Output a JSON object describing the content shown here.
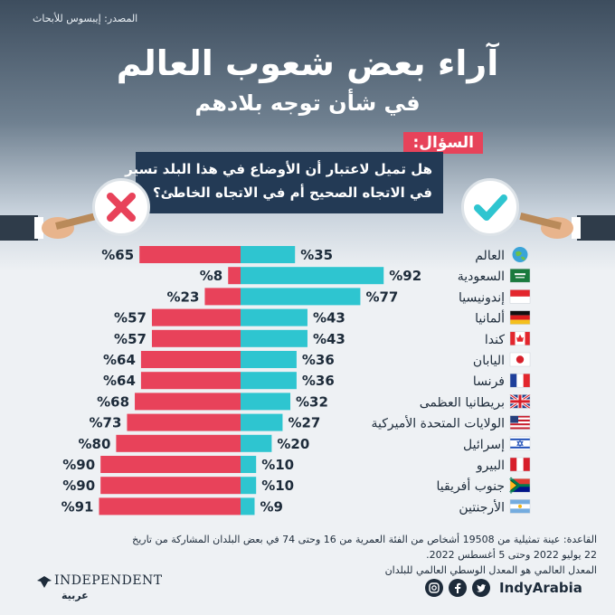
{
  "source": "المصدر: إيبسوس للأبحاث",
  "title": "آراء بعض شعوب العالم",
  "subtitle": "في شأن توجه بلادهم",
  "question_label": "السؤال:",
  "question_line1": "هل تميل لاعتبار أن الأوضاع في هذا البلد تسير",
  "question_line2": "في الاتجاه الصحيح أم في الاتجاه الخاطئ؟",
  "colors": {
    "yes": "#2ec5d0",
    "no": "#e8425a",
    "navy": "#233a55"
  },
  "chart_data": {
    "type": "bar",
    "orientation": "diverging-horizontal",
    "categories": [
      "العالم",
      "السعودية",
      "إندونيسيا",
      "ألمانيا",
      "كندا",
      "اليابان",
      "فرنسا",
      "بريطانيا العظمى",
      "الولايات المتحدة الأميركية",
      "إسرائيل",
      "البيرو",
      "جنوب أفريقيا",
      "الأرجنتين"
    ],
    "series": [
      {
        "values": [
          35,
          92,
          77,
          43,
          43,
          36,
          36,
          32,
          27,
          20,
          10,
          10,
          9
        ]
      },
      {
        "values": [
          65,
          8,
          23,
          57,
          57,
          64,
          64,
          68,
          73,
          80,
          90,
          90,
          91
        ]
      }
    ],
    "value_labels_yes": [
      "%35",
      "%92",
      "%77",
      "%43",
      "%43",
      "%36",
      "%36",
      "%32",
      "%27",
      "%20",
      "%10",
      "%10",
      "%9"
    ],
    "value_labels_no": [
      "%65",
      "%8",
      "%23",
      "%57",
      "%57",
      "%64",
      "%64",
      "%68",
      "%73",
      "%80",
      "%90",
      "%90",
      "%91"
    ],
    "xlim": [
      0,
      100
    ]
  },
  "flags": [
    "globe",
    "saudi",
    "indonesia",
    "germany",
    "canada",
    "japan",
    "france",
    "uk",
    "usa",
    "israel",
    "peru",
    "south-africa",
    "argentina"
  ],
  "footnote_line1": "القاعدة: عينة تمثيلية من 19508 أشخاص من الفئة العمرية من 16 وحتى 74 في بعض البلدان المشاركة من تاريخ",
  "footnote_line2": "22 يوليو 2022 وحتى 5 أغسطس 2022.",
  "footnote_line3": "المعدل العالمي هو المعدل الوسطي العالمي للبلدان",
  "social_handle": "IndyArabia",
  "logo_text": "INDEPENDENT",
  "logo_arabic": "عربية"
}
